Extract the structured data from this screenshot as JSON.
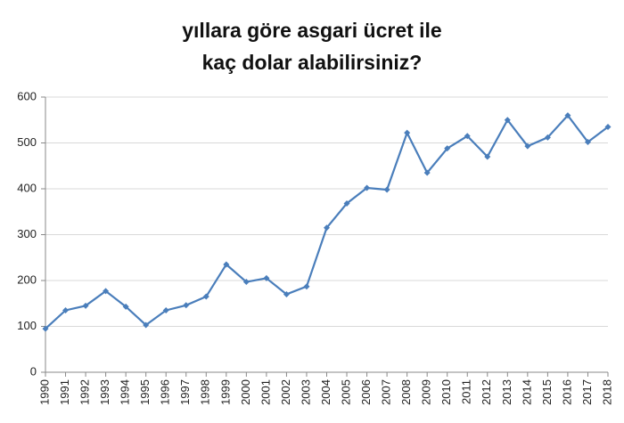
{
  "chart_data": {
    "type": "line",
    "title": [
      "yıllara göre asgari ücret ile",
      "kaç dolar alabilirsiniz?"
    ],
    "categories": [
      "1990",
      "1991",
      "1992",
      "1993",
      "1994",
      "1995",
      "1996",
      "1997",
      "1998",
      "1999",
      "2000",
      "2001",
      "2002",
      "2003",
      "2004",
      "2005",
      "2006",
      "2007",
      "2008",
      "2009",
      "2010",
      "2011",
      "2012",
      "2013",
      "2014",
      "2015",
      "2016",
      "2017",
      "2018"
    ],
    "values": [
      95,
      135,
      145,
      177,
      143,
      103,
      135,
      146,
      165,
      235,
      197,
      205,
      170,
      187,
      315,
      368,
      402,
      398,
      522,
      435,
      488,
      515,
      470,
      550,
      493,
      512,
      560,
      502,
      535
    ],
    "color": "#4a7ebb",
    "ylim": [
      0,
      600
    ],
    "yticks": [
      0,
      100,
      200,
      300,
      400,
      500,
      600
    ],
    "grid": true
  }
}
